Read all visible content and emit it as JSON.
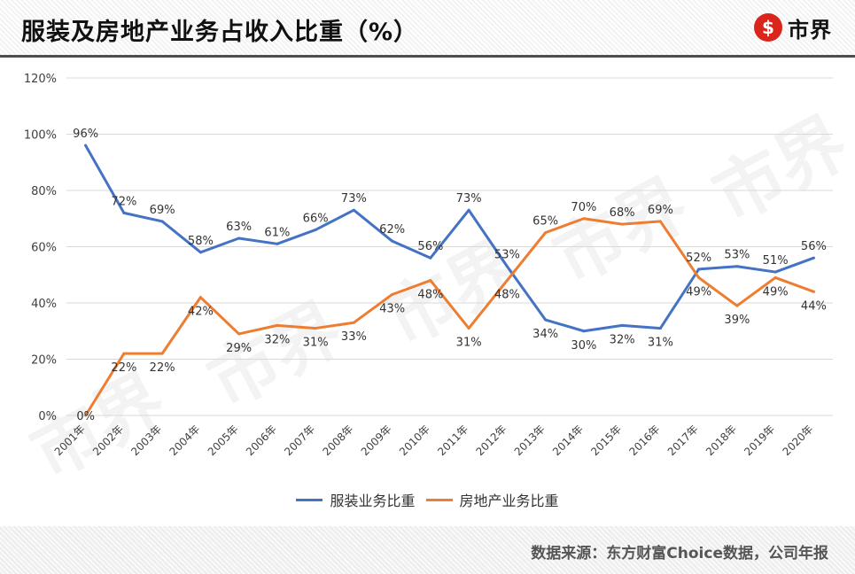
{
  "header": {
    "title": "服装及房地产业务占收入比重（%）",
    "logo_text": "市界",
    "logo_mark": "$"
  },
  "footer": {
    "source": "数据来源：东方财富Choice数据，公司年报"
  },
  "watermark": "市界",
  "colors": {
    "series1": "#4472C4",
    "series2": "#ED7D31",
    "grid": "#D9D9D9",
    "axis_text": "#404040",
    "logo_red": "#D9251C"
  },
  "chart_data": {
    "type": "line",
    "title": "服装及房地产业务占收入比重（%）",
    "x": [
      "2001年",
      "2002年",
      "2003年",
      "2004年",
      "2005年",
      "2006年",
      "2007年",
      "2008年",
      "2009年",
      "2010年",
      "2011年",
      "2012年",
      "2013年",
      "2014年",
      "2015年",
      "2016年",
      "2017年",
      "2018年",
      "2019年",
      "2020年"
    ],
    "series": [
      {
        "name": "服装业务比重",
        "values": [
          96,
          72,
          69,
          58,
          63,
          61,
          66,
          73,
          62,
          56,
          73,
          53,
          34,
          30,
          32,
          31,
          52,
          53,
          51,
          56
        ]
      },
      {
        "name": "房地产业务比重",
        "values": [
          0,
          22,
          22,
          42,
          29,
          32,
          31,
          33,
          43,
          48,
          31,
          48,
          65,
          70,
          68,
          69,
          49,
          39,
          49,
          44
        ]
      }
    ],
    "ylim": [
      0,
      120
    ],
    "yticks": [
      "0%",
      "20%",
      "40%",
      "60%",
      "80%",
      "100%",
      "120%"
    ],
    "grid": true,
    "legend": "bottom",
    "data_labels": true
  }
}
